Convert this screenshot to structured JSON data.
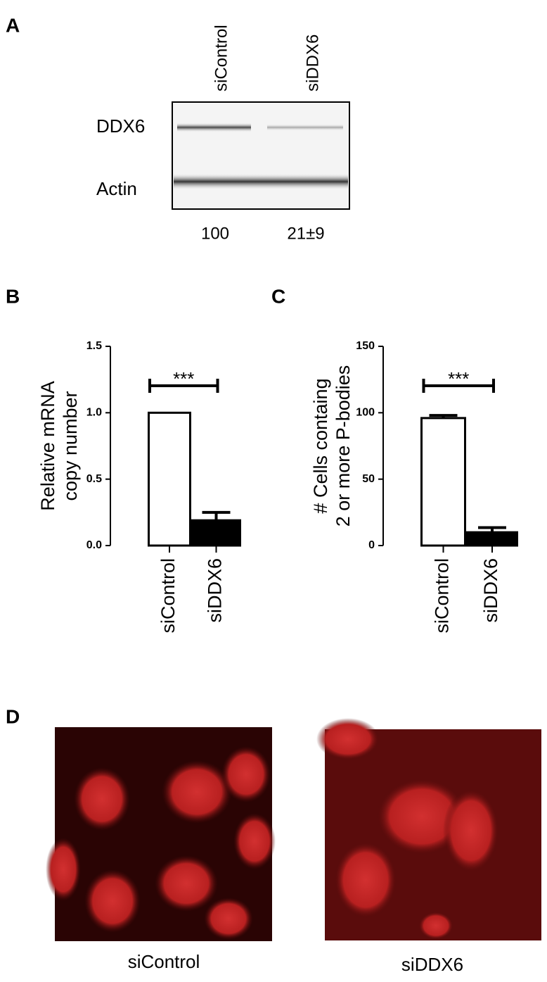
{
  "panel_labels": [
    "A",
    "B",
    "C",
    "D"
  ],
  "blot": {
    "lanes": [
      "siControl",
      "siDDX6"
    ],
    "bands": [
      "DDX6",
      "Actin"
    ],
    "quantification": [
      100,
      "21±9"
    ]
  },
  "chart_data": [
    {
      "type": "bar",
      "ylabel": [
        "Relative mRNA",
        "copy number"
      ],
      "categories": [
        "siControl",
        "siDDX6"
      ],
      "values": [
        1.0,
        0.19
      ],
      "errors": [
        0,
        0.06
      ],
      "colors": [
        "#ffffff",
        "#000000"
      ],
      "ylim": [
        0,
        1.5
      ],
      "yticks": [
        {
          "value": 0,
          "label": "0.0"
        },
        0.5,
        {
          "value": 1,
          "label": "1.0"
        },
        1.5
      ],
      "annotation": "***"
    },
    {
      "type": "bar",
      "ylabel": [
        "# Cells containg",
        "2 or more P-bodies"
      ],
      "categories": [
        "siControl",
        "siDDX6"
      ],
      "values": [
        96,
        10
      ],
      "errors": [
        2,
        3.5
      ],
      "colors": [
        "#ffffff",
        "#000000"
      ],
      "ylim": [
        0,
        150
      ],
      "yticks": [
        0,
        50,
        100,
        150
      ],
      "annotation": "***"
    }
  ],
  "micrographs": {
    "labels": [
      "siControl",
      "siDDX6"
    ]
  }
}
